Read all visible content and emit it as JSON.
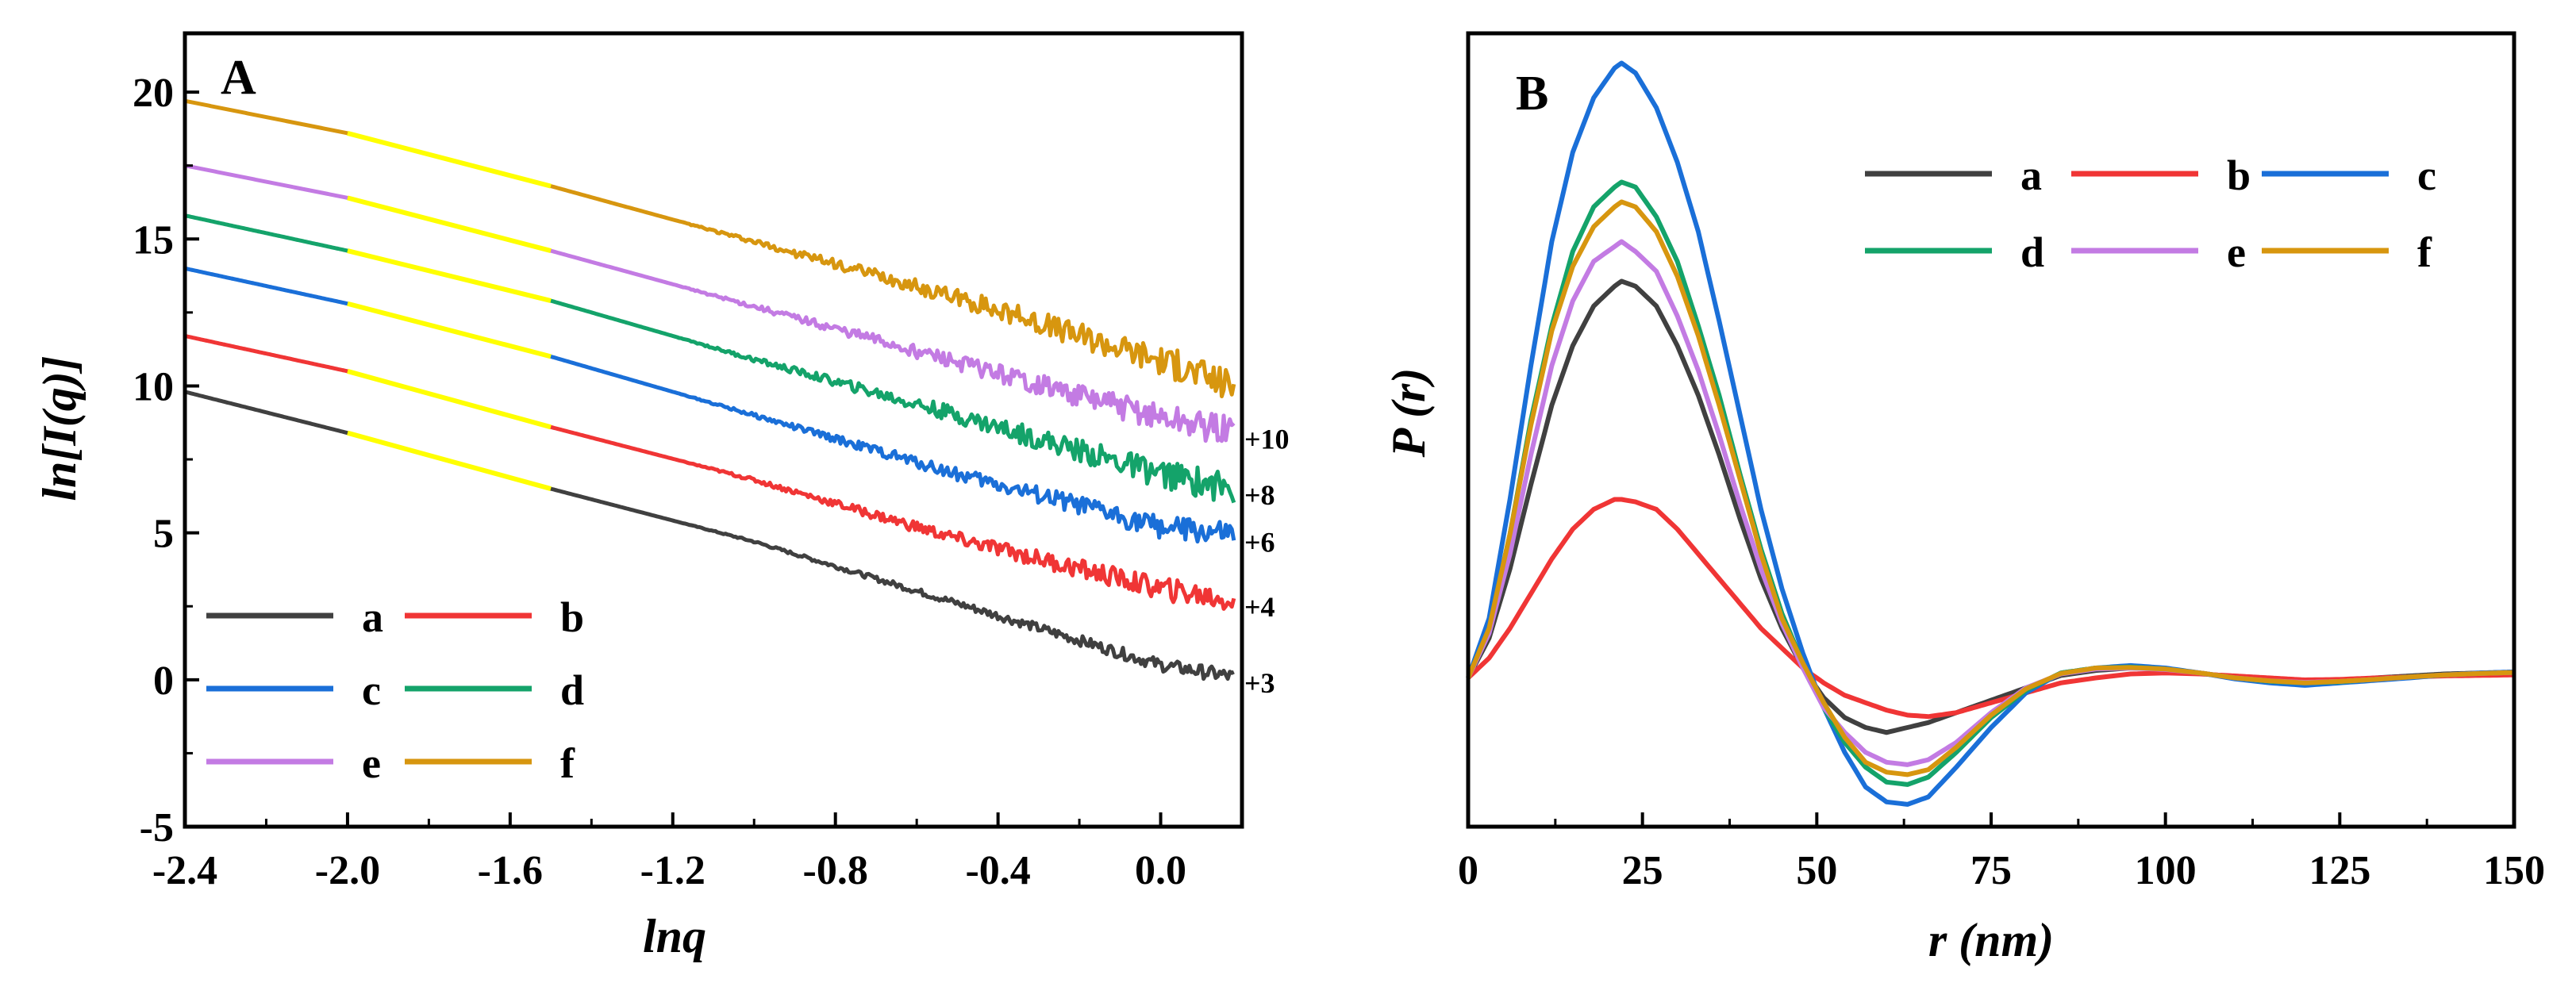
{
  "chart_data": [
    {
      "panel_label": "A",
      "type": "line",
      "xlabel": "lnq",
      "ylabel": "ln[I(q)]",
      "xlim": [
        -2.4,
        0.2
      ],
      "ylim": [
        -5,
        22
      ],
      "xticks": [
        -2.4,
        -2.0,
        -1.6,
        -1.2,
        -0.8,
        -0.4,
        0.0
      ],
      "xtick_labels": [
        "-2.4",
        "-2.0",
        "-1.6",
        "-1.2",
        "-0.8",
        "-0.4",
        "0.0"
      ],
      "yticks": [
        -5,
        0,
        5,
        10,
        15,
        20
      ],
      "ytick_labels": [
        "-5",
        "0",
        "5",
        "10",
        "15",
        "20"
      ],
      "fit_range_highlight": {
        "color": "#FFFF00",
        "x": [
          -2.0,
          -1.5
        ]
      },
      "series": [
        {
          "name": "a",
          "color": "#404040",
          "x": [
            -2.4,
            -2.0,
            -1.5,
            -1.0,
            -0.5,
            0.0,
            0.18
          ],
          "y": [
            9.8,
            8.4,
            6.5,
            4.7,
            2.6,
            0.5,
            0.1
          ],
          "noise": 0.25,
          "offset_label": "+3"
        },
        {
          "name": "b",
          "color": "#F03535",
          "x": [
            -2.4,
            -2.0,
            -1.5,
            -1.0,
            -0.5,
            0.0,
            0.18
          ],
          "y": [
            11.7,
            10.5,
            8.6,
            6.8,
            4.8,
            3.1,
            2.7
          ],
          "noise": 0.45,
          "offset_label": "+4"
        },
        {
          "name": "c",
          "color": "#1A6FD8",
          "x": [
            -2.4,
            -2.0,
            -1.5,
            -1.0,
            -0.5,
            0.0,
            0.18
          ],
          "y": [
            14.0,
            12.8,
            11.0,
            9.0,
            7.0,
            5.2,
            4.9
          ],
          "noise": 0.45,
          "offset_label": "+6"
        },
        {
          "name": "d",
          "color": "#14A36A",
          "x": [
            -2.4,
            -2.0,
            -1.5,
            -1.0,
            -0.5,
            0.0,
            0.18
          ],
          "y": [
            15.8,
            14.6,
            12.9,
            10.9,
            9.0,
            7.0,
            6.5
          ],
          "noise": 0.55,
          "offset_label": "+8"
        },
        {
          "name": "e",
          "color": "#C37BE3",
          "x": [
            -2.4,
            -2.0,
            -1.5,
            -1.0,
            -0.5,
            0.0,
            0.18
          ],
          "y": [
            17.5,
            16.4,
            14.6,
            12.7,
            10.8,
            8.9,
            8.4
          ],
          "noise": 0.55,
          "offset_label": "+10"
        },
        {
          "name": "f",
          "color": "#D7960F",
          "x": [
            -2.4,
            -2.0,
            -1.5,
            -1.0,
            -0.5,
            0.0,
            0.18
          ],
          "y": [
            19.7,
            18.6,
            16.8,
            14.9,
            13.0,
            10.9,
            10.0
          ],
          "noise": 0.6,
          "offset_label": ""
        }
      ],
      "legend": {
        "placement": "bottom-left",
        "entries": [
          "a",
          "b",
          "c",
          "d",
          "e",
          "f"
        ]
      }
    },
    {
      "panel_label": "B",
      "type": "line",
      "xlabel": "r (nm)",
      "ylabel": "P (r)",
      "xlim": [
        0,
        150
      ],
      "ylim": [
        -0.3,
        1.3
      ],
      "xticks": [
        0,
        25,
        50,
        75,
        100,
        125,
        150
      ],
      "xtick_labels": [
        "0",
        "25",
        "50",
        "75",
        "100",
        "125",
        "150"
      ],
      "yticks": [],
      "series": [
        {
          "name": "a",
          "color": "#404040",
          "x": [
            0,
            3,
            6,
            9,
            12,
            15,
            18,
            21,
            22,
            24,
            27,
            30,
            33,
            36,
            39,
            42,
            45,
            48,
            51,
            54,
            57,
            60,
            63,
            66,
            70,
            75,
            80,
            85,
            90,
            95,
            100,
            105,
            110,
            115,
            120,
            125,
            130,
            135,
            140,
            145,
            150
          ],
          "y": [
            0,
            0.08,
            0.22,
            0.39,
            0.55,
            0.67,
            0.75,
            0.79,
            0.8,
            0.79,
            0.75,
            0.67,
            0.57,
            0.45,
            0.32,
            0.2,
            0.1,
            0.02,
            -0.04,
            -0.08,
            -0.1,
            -0.11,
            -0.1,
            -0.09,
            -0.07,
            -0.045,
            -0.02,
            0.005,
            0.015,
            0.02,
            0.018,
            0.01,
            0.0,
            -0.005,
            -0.008,
            -0.006,
            0.0,
            0.004,
            0.008,
            0.01,
            0.012
          ]
        },
        {
          "name": "b",
          "color": "#F03535",
          "x": [
            0,
            3,
            6,
            9,
            12,
            15,
            18,
            21,
            22,
            24,
            27,
            30,
            33,
            36,
            39,
            42,
            45,
            48,
            51,
            54,
            57,
            60,
            63,
            66,
            70,
            75,
            80,
            85,
            90,
            95,
            100,
            105,
            110,
            115,
            120,
            125,
            130,
            135,
            140,
            145,
            150
          ],
          "y": [
            0,
            0.04,
            0.1,
            0.17,
            0.24,
            0.3,
            0.34,
            0.36,
            0.36,
            0.355,
            0.34,
            0.3,
            0.25,
            0.2,
            0.15,
            0.1,
            0.06,
            0.02,
            -0.01,
            -0.035,
            -0.05,
            -0.065,
            -0.075,
            -0.078,
            -0.07,
            -0.05,
            -0.03,
            -0.01,
            0.0,
            0.008,
            0.01,
            0.008,
            0.004,
            0.0,
            -0.004,
            -0.003,
            0.0,
            0.002,
            0.004,
            0.005,
            0.006
          ]
        },
        {
          "name": "c",
          "color": "#1A6FD8",
          "x": [
            0,
            3,
            6,
            9,
            12,
            15,
            18,
            21,
            22,
            24,
            27,
            30,
            33,
            36,
            39,
            42,
            45,
            48,
            51,
            54,
            57,
            60,
            63,
            66,
            70,
            75,
            80,
            85,
            90,
            95,
            100,
            105,
            110,
            115,
            120,
            125,
            130,
            135,
            140,
            145,
            150
          ],
          "y": [
            0,
            0.12,
            0.36,
            0.63,
            0.88,
            1.06,
            1.17,
            1.23,
            1.24,
            1.22,
            1.15,
            1.04,
            0.9,
            0.72,
            0.53,
            0.34,
            0.18,
            0.05,
            -0.06,
            -0.15,
            -0.22,
            -0.25,
            -0.255,
            -0.24,
            -0.18,
            -0.1,
            -0.03,
            0.01,
            0.02,
            0.025,
            0.02,
            0.01,
            -0.002,
            -0.01,
            -0.015,
            -0.01,
            -0.005,
            0.0,
            0.006,
            0.01,
            0.012
          ]
        },
        {
          "name": "d",
          "color": "#14A36A",
          "x": [
            0,
            3,
            6,
            9,
            12,
            15,
            18,
            21,
            22,
            24,
            27,
            30,
            33,
            36,
            39,
            42,
            45,
            48,
            51,
            54,
            57,
            60,
            63,
            66,
            70,
            75,
            80,
            85,
            90,
            95,
            100,
            105,
            110,
            115,
            120,
            125,
            130,
            135,
            140,
            145,
            150
          ],
          "y": [
            0,
            0.1,
            0.29,
            0.52,
            0.71,
            0.86,
            0.95,
            0.99,
            1.0,
            0.99,
            0.93,
            0.84,
            0.71,
            0.57,
            0.41,
            0.26,
            0.13,
            0.03,
            -0.06,
            -0.13,
            -0.18,
            -0.21,
            -0.215,
            -0.2,
            -0.15,
            -0.08,
            -0.025,
            0.01,
            0.02,
            0.022,
            0.018,
            0.01,
            0.0,
            -0.007,
            -0.01,
            -0.008,
            -0.003,
            0.002,
            0.006,
            0.009,
            0.011
          ]
        },
        {
          "name": "e",
          "color": "#C37BE3",
          "x": [
            0,
            3,
            6,
            9,
            12,
            15,
            18,
            21,
            22,
            24,
            27,
            30,
            33,
            36,
            39,
            42,
            45,
            48,
            51,
            54,
            57,
            60,
            63,
            66,
            70,
            75,
            80,
            85,
            90,
            95,
            100,
            105,
            110,
            115,
            120,
            125,
            130,
            135,
            140,
            145,
            150
          ],
          "y": [
            0,
            0.09,
            0.25,
            0.45,
            0.63,
            0.76,
            0.84,
            0.87,
            0.88,
            0.86,
            0.82,
            0.73,
            0.62,
            0.49,
            0.35,
            0.22,
            0.11,
            0.02,
            -0.06,
            -0.11,
            -0.15,
            -0.17,
            -0.175,
            -0.165,
            -0.13,
            -0.07,
            -0.02,
            0.008,
            0.018,
            0.02,
            0.017,
            0.01,
            0.0,
            -0.006,
            -0.009,
            -0.007,
            -0.003,
            0.002,
            0.006,
            0.009,
            0.011
          ]
        },
        {
          "name": "f",
          "color": "#D7960F",
          "x": [
            0,
            3,
            6,
            9,
            12,
            15,
            18,
            21,
            22,
            24,
            27,
            30,
            33,
            36,
            39,
            42,
            45,
            48,
            51,
            54,
            57,
            60,
            63,
            66,
            70,
            75,
            80,
            85,
            90,
            95,
            100,
            105,
            110,
            115,
            120,
            125,
            130,
            135,
            140,
            145,
            150
          ],
          "y": [
            0,
            0.1,
            0.29,
            0.51,
            0.7,
            0.83,
            0.91,
            0.95,
            0.96,
            0.95,
            0.9,
            0.81,
            0.69,
            0.55,
            0.4,
            0.25,
            0.12,
            0.03,
            -0.05,
            -0.12,
            -0.17,
            -0.19,
            -0.195,
            -0.185,
            -0.14,
            -0.075,
            -0.022,
            0.009,
            0.02,
            0.021,
            0.018,
            0.01,
            0.0,
            -0.006,
            -0.01,
            -0.007,
            -0.003,
            0.002,
            0.006,
            0.009,
            0.011
          ]
        }
      ],
      "legend": {
        "placement": "top-right",
        "entries": [
          "a",
          "b",
          "c",
          "d",
          "e",
          "f"
        ]
      }
    }
  ]
}
